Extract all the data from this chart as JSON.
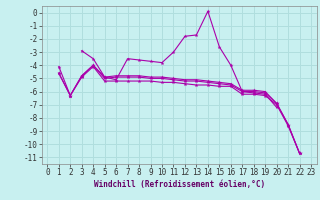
{
  "xlabel": "Windchill (Refroidissement éolien,°C)",
  "background_color": "#c8f0f0",
  "grid_color": "#b0dede",
  "line_color": "#aa00aa",
  "xlim": [
    -0.5,
    23.5
  ],
  "ylim": [
    -11.5,
    0.5
  ],
  "xtick_labels": [
    "0",
    "1",
    "2",
    "3",
    "4",
    "5",
    "6",
    "7",
    "8",
    "9",
    "10",
    "11",
    "12",
    "13",
    "14",
    "15",
    "16",
    "17",
    "18",
    "19",
    "20",
    "21",
    "22",
    "23"
  ],
  "ytick_labels": [
    "0",
    "-1",
    "-2",
    "-3",
    "-4",
    "-5",
    "-6",
    "-7",
    "-8",
    "-9",
    "-10",
    "-11"
  ],
  "ytick_values": [
    0,
    -1,
    -2,
    -3,
    -4,
    -5,
    -6,
    -7,
    -8,
    -9,
    -10,
    -11
  ],
  "xtick_values": [
    0,
    1,
    2,
    3,
    4,
    5,
    6,
    7,
    8,
    9,
    10,
    11,
    12,
    13,
    14,
    15,
    16,
    17,
    18,
    19,
    20,
    21,
    22,
    23
  ],
  "series": [
    [
      null,
      -4.1,
      -6.3,
      -4.9,
      -4.1,
      -5.2,
      -5.2,
      -5.2,
      -5.2,
      -5.2,
      -5.3,
      -5.3,
      -5.4,
      -5.5,
      -5.5,
      -5.6,
      -5.6,
      -6.2,
      -6.2,
      -6.3,
      -7.0,
      -8.6,
      -10.7,
      null
    ],
    [
      null,
      null,
      null,
      -2.9,
      -3.5,
      -4.9,
      -5.1,
      -3.5,
      -3.6,
      -3.7,
      -3.8,
      -3.0,
      -1.8,
      -1.7,
      0.1,
      -2.6,
      -4.0,
      -6.0,
      -6.1,
      -6.2,
      -7.2,
      null,
      null,
      null
    ],
    [
      null,
      -4.6,
      -6.3,
      -4.8,
      -4.0,
      -5.0,
      -4.9,
      -4.9,
      -4.9,
      -5.0,
      -5.0,
      -5.1,
      -5.2,
      -5.2,
      -5.3,
      -5.4,
      -5.5,
      -6.0,
      -6.0,
      -6.1,
      -6.9,
      -8.5,
      -10.7,
      null
    ],
    [
      null,
      -4.6,
      -6.3,
      -4.8,
      -4.0,
      -4.9,
      -4.8,
      -4.8,
      -4.8,
      -4.9,
      -4.9,
      -5.0,
      -5.1,
      -5.1,
      -5.2,
      -5.3,
      -5.4,
      -5.9,
      -5.9,
      -6.0,
      -6.9,
      -8.5,
      -10.7,
      null
    ]
  ],
  "tick_fontsize": 5.5,
  "xlabel_fontsize": 5.5
}
